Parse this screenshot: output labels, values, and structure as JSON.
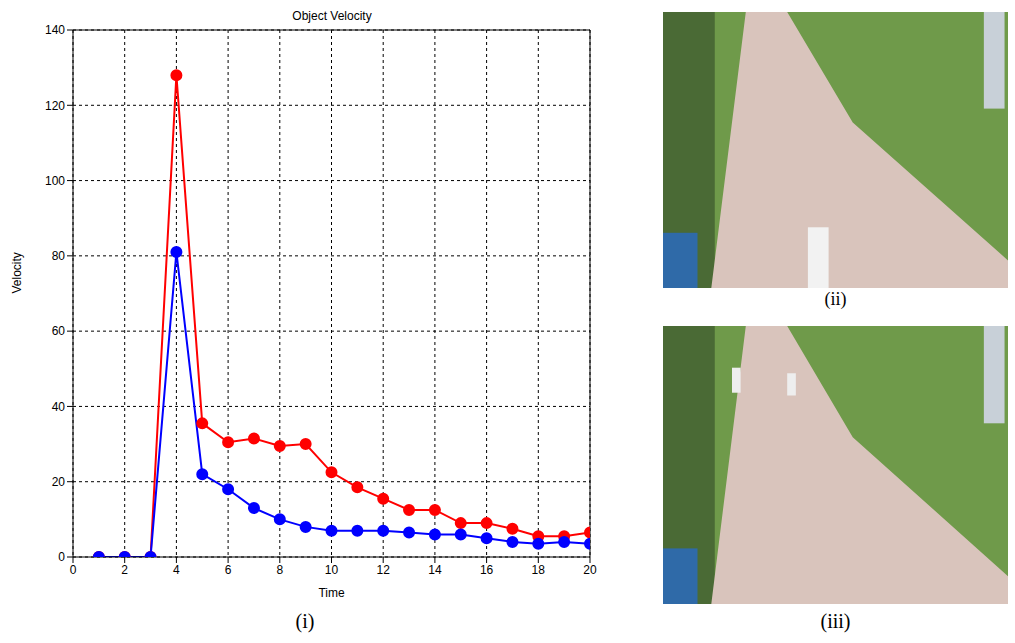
{
  "chart_data": {
    "type": "line",
    "title": "Object Velocity",
    "x_label": "Time",
    "y_label": "Velocity",
    "x": [
      1,
      2,
      3,
      4,
      5,
      6,
      7,
      8,
      9,
      10,
      11,
      12,
      13,
      14,
      15,
      16,
      17,
      18,
      19,
      20
    ],
    "series": [
      {
        "color": "#ff0000",
        "values": [
          0,
          0,
          0,
          128,
          35.5,
          30.5,
          31.5,
          29.5,
          30,
          22.5,
          18.5,
          15.5,
          12.5,
          12.5,
          9,
          9,
          7.5,
          5.5,
          5.5,
          6.5
        ]
      },
      {
        "color": "#0000ff",
        "values": [
          0,
          0,
          0,
          81,
          22,
          18,
          13,
          10,
          8,
          7,
          7,
          7,
          6.5,
          6,
          6,
          5,
          4,
          3.5,
          4,
          3.5
        ]
      }
    ],
    "xlim": [
      0,
      20
    ],
    "xticks": [
      0,
      2,
      4,
      6,
      8,
      10,
      12,
      14,
      16,
      18,
      20
    ],
    "ylim": [
      0,
      140
    ],
    "yticks": [
      0,
      20,
      40,
      60,
      80,
      100,
      120,
      140
    ],
    "grid": true,
    "marker": "circle",
    "line_style": "solid"
  },
  "captions": [
    "(i)",
    "(ii)",
    "(iii)"
  ]
}
